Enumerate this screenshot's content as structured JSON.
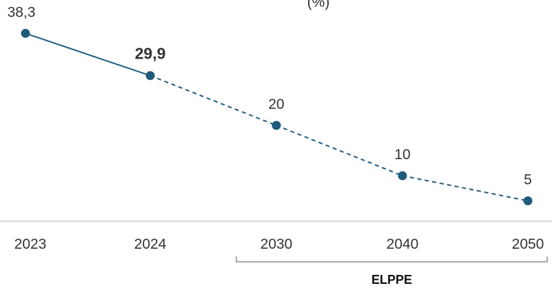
{
  "chart_data": {
    "type": "line",
    "title": "(%)",
    "categories": [
      "2023",
      "2024",
      "2030",
      "2040",
      "2050"
    ],
    "values": [
      38.3,
      29.9,
      20,
      10,
      5
    ],
    "data_labels": [
      "38,3",
      "29,9",
      "20",
      "10",
      "5"
    ],
    "emphasized_index": 1,
    "solid_segment": [
      "2023",
      "2024"
    ],
    "dashed_segment": [
      "2024",
      "2050"
    ],
    "series_color": "#1f5b7a",
    "axis_color": "#d9d9d9",
    "ylim": [
      0,
      40
    ],
    "grid": false,
    "group_bracket": {
      "label": "ELPPE",
      "from_category": "2030",
      "to_category": "2050"
    }
  }
}
